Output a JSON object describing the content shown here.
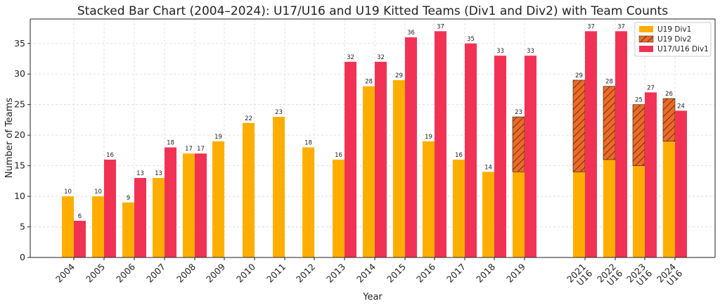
{
  "chart_data": {
    "type": "bar",
    "title": "Stacked Bar Chart (2004–2024): U17/U16 and U19 Kitted Teams (Div1 and Div2) with Team Counts",
    "xlabel": "Year",
    "ylabel": "Number of Teams",
    "ylim": [
      0,
      39
    ],
    "yticks": [
      0,
      5,
      10,
      15,
      20,
      25,
      30,
      35
    ],
    "grid": true,
    "legend_position": "top-right",
    "colors": {
      "u19_div1": "#FFAE00",
      "u19_div2": "#EE6A24",
      "u17_div1": "#F23254"
    },
    "series": [
      {
        "name": "U19 Div1"
      },
      {
        "name": "U19 Div2"
      },
      {
        "name": "U17/U16 Div1"
      }
    ],
    "groups": [
      {
        "label": "2004",
        "u19_div1": 10,
        "u19_div2": 0,
        "u19_total": 10,
        "u17_div1": 6
      },
      {
        "label": "2005",
        "u19_div1": 10,
        "u19_div2": 0,
        "u19_total": 10,
        "u17_div1": 16
      },
      {
        "label": "2006",
        "u19_div1": 9,
        "u19_div2": 0,
        "u19_total": 9,
        "u17_div1": 13
      },
      {
        "label": "2007",
        "u19_div1": 13,
        "u19_div2": 0,
        "u19_total": 13,
        "u17_div1": 18
      },
      {
        "label": "2008",
        "u19_div1": 17,
        "u19_div2": 0,
        "u19_total": 17,
        "u17_div1": 17
      },
      {
        "label": "2009",
        "u19_div1": 19,
        "u19_div2": 0,
        "u19_total": 19,
        "u17_div1": null
      },
      {
        "label": "2010",
        "u19_div1": 22,
        "u19_div2": 0,
        "u19_total": 22,
        "u17_div1": null
      },
      {
        "label": "2011",
        "u19_div1": 23,
        "u19_div2": 0,
        "u19_total": 23,
        "u17_div1": null
      },
      {
        "label": "2012",
        "u19_div1": 18,
        "u19_div2": 0,
        "u19_total": 18,
        "u17_div1": null
      },
      {
        "label": "2013",
        "u19_div1": 16,
        "u19_div2": 0,
        "u19_total": 16,
        "u17_div1": 32
      },
      {
        "label": "2014",
        "u19_div1": 28,
        "u19_div2": 0,
        "u19_total": 28,
        "u17_div1": 32
      },
      {
        "label": "2015",
        "u19_div1": 29,
        "u19_div2": 0,
        "u19_total": 29,
        "u17_div1": 36
      },
      {
        "label": "2016",
        "u19_div1": 19,
        "u19_div2": 0,
        "u19_total": 19,
        "u17_div1": 37
      },
      {
        "label": "2017",
        "u19_div1": 16,
        "u19_div2": 0,
        "u19_total": 16,
        "u17_div1": 35
      },
      {
        "label": "2018",
        "u19_div1": 14,
        "u19_div2": 0,
        "u19_total": 14,
        "u17_div1": 33
      },
      {
        "label": "2019",
        "u19_div1": 14,
        "u19_div2": 9,
        "u19_total": 23,
        "u17_div1": 33
      },
      {
        "label": "2021\nU16",
        "u19_div1": 14,
        "u19_div2": 15,
        "u19_total": 29,
        "u17_div1": 37
      },
      {
        "label": "2022\nU16",
        "u19_div1": 16,
        "u19_div2": 12,
        "u19_total": 28,
        "u17_div1": 37
      },
      {
        "label": "2023\nU16",
        "u19_div1": 15,
        "u19_div2": 10,
        "u19_total": 25,
        "u17_div1": 27
      },
      {
        "label": "2024\nU16",
        "u19_div1": 19,
        "u19_div2": 7,
        "u19_total": 26,
        "u17_div1": 24
      }
    ]
  }
}
